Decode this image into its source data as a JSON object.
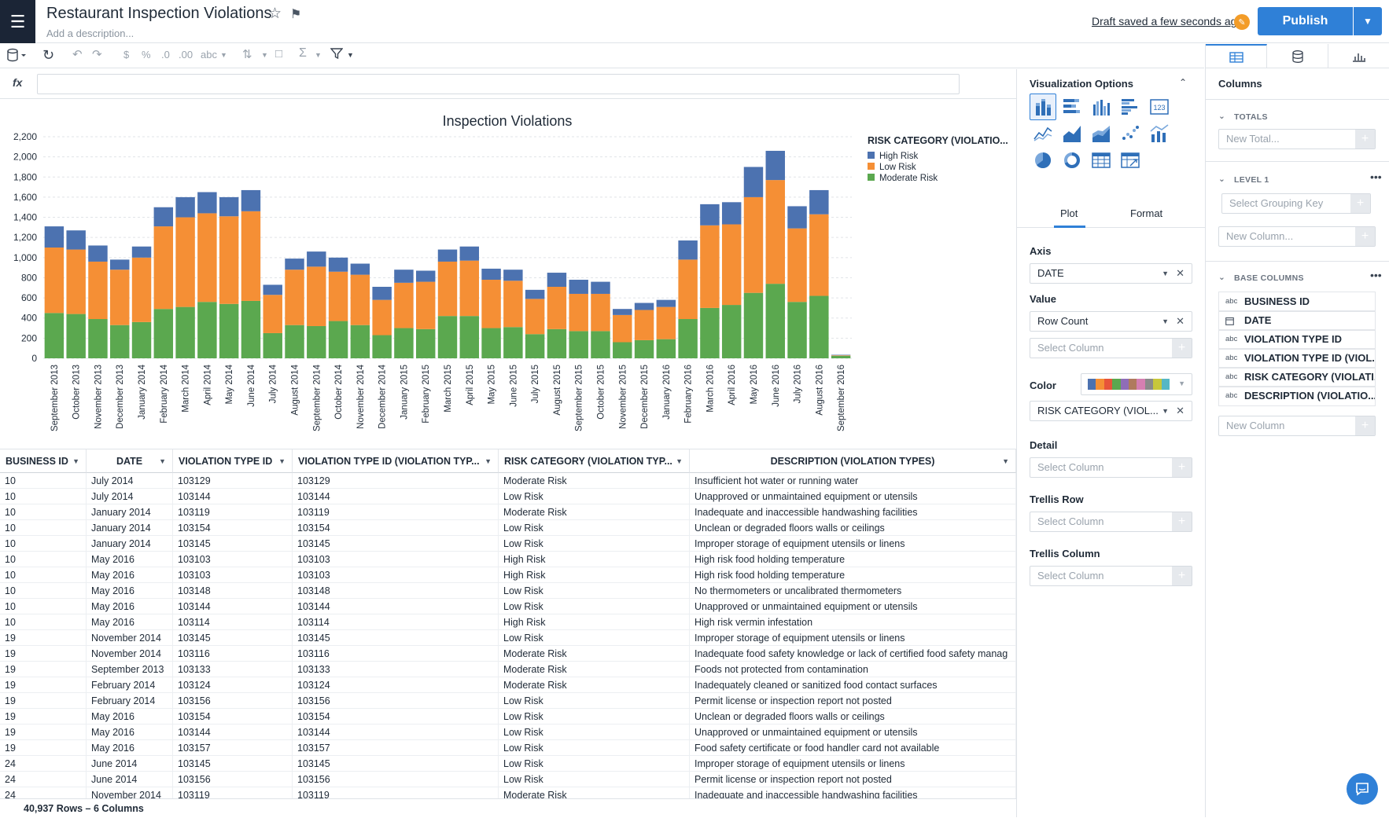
{
  "header": {
    "title": "Restaurant Inspection Violations",
    "description_placeholder": "Add a description...",
    "draft_status": "Draft saved a few seconds ago",
    "publish_label": "Publish"
  },
  "toolbar": {
    "currency": "$",
    "percent": "%",
    "dec_less": ".0",
    "dec_more": ".00",
    "text_format": "abc"
  },
  "formula_bar": {
    "label": "fx"
  },
  "viz_panel": {
    "title": "Visualization Options",
    "tabs": [
      "Plot",
      "Format"
    ],
    "axis": {
      "label": "Axis",
      "value": "DATE"
    },
    "value": {
      "label": "Value",
      "value": "Row Count",
      "placeholder": "Select Column"
    },
    "color": {
      "label": "Color",
      "value": "RISK CATEGORY (VIOL..."
    },
    "detail": {
      "label": "Detail",
      "placeholder": "Select Column"
    },
    "trellis_row": {
      "label": "Trellis Row",
      "placeholder": "Select Column"
    },
    "trellis_column": {
      "label": "Trellis Column",
      "placeholder": "Select Column"
    },
    "palette": [
      "#4c72b0",
      "#f58f35",
      "#e7543a",
      "#5ba84f",
      "#8f6db8",
      "#b07a5e",
      "#d57fb1",
      "#8a8a8a",
      "#c7c73a",
      "#56b7c5"
    ]
  },
  "columns_panel": {
    "title": "Columns",
    "totals": {
      "label": "TOTALS",
      "placeholder": "New Total..."
    },
    "level1": {
      "label": "LEVEL 1",
      "placeholder": "Select Grouping Key",
      "new_column": "New Column..."
    },
    "base": {
      "label": "BASE COLUMNS",
      "new_column": "New Column"
    },
    "base_columns": [
      {
        "type": "abc",
        "name": "BUSINESS ID"
      },
      {
        "type": "cal",
        "name": "DATE"
      },
      {
        "type": "abc",
        "name": "VIOLATION TYPE ID"
      },
      {
        "type": "abc",
        "name": "VIOLATION TYPE ID (VIOL..."
      },
      {
        "type": "abc",
        "name": "RISK CATEGORY (VIOLATI..."
      },
      {
        "type": "abc",
        "name": "DESCRIPTION (VIOLATIO..."
      }
    ]
  },
  "table": {
    "headers": [
      "BUSINESS ID",
      "DATE",
      "VIOLATION TYPE ID",
      "VIOLATION TYPE ID (VIOLATION TYP...",
      "RISK CATEGORY (VIOLATION TYP...",
      "DESCRIPTION (VIOLATION TYPES)"
    ],
    "rows": [
      [
        "10",
        "July 2014",
        "103129",
        "103129",
        "Moderate Risk",
        "Insufficient hot water or running water"
      ],
      [
        "10",
        "July 2014",
        "103144",
        "103144",
        "Low Risk",
        "Unapproved or unmaintained equipment or utensils"
      ],
      [
        "10",
        "January 2014",
        "103119",
        "103119",
        "Moderate Risk",
        "Inadequate and inaccessible handwashing facilities"
      ],
      [
        "10",
        "January 2014",
        "103154",
        "103154",
        "Low Risk",
        "Unclean or degraded floors walls or ceilings"
      ],
      [
        "10",
        "January 2014",
        "103145",
        "103145",
        "Low Risk",
        "Improper storage of equipment utensils or linens"
      ],
      [
        "10",
        "May 2016",
        "103103",
        "103103",
        "High Risk",
        "High risk food holding temperature"
      ],
      [
        "10",
        "May 2016",
        "103103",
        "103103",
        "High Risk",
        "High risk food holding temperature"
      ],
      [
        "10",
        "May 2016",
        "103148",
        "103148",
        "Low Risk",
        "No thermometers or uncalibrated thermometers"
      ],
      [
        "10",
        "May 2016",
        "103144",
        "103144",
        "Low Risk",
        "Unapproved or unmaintained equipment or utensils"
      ],
      [
        "10",
        "May 2016",
        "103114",
        "103114",
        "High Risk",
        "High risk vermin infestation"
      ],
      [
        "19",
        "November 2014",
        "103145",
        "103145",
        "Low Risk",
        "Improper storage of equipment utensils or linens"
      ],
      [
        "19",
        "November 2014",
        "103116",
        "103116",
        "Moderate Risk",
        "Inadequate food safety knowledge or lack of certified food safety manag"
      ],
      [
        "19",
        "September 2013",
        "103133",
        "103133",
        "Moderate Risk",
        "Foods not protected from contamination"
      ],
      [
        "19",
        "February 2014",
        "103124",
        "103124",
        "Moderate Risk",
        "Inadequately cleaned or sanitized food contact surfaces"
      ],
      [
        "19",
        "February 2014",
        "103156",
        "103156",
        "Low Risk",
        "Permit license or inspection report not posted"
      ],
      [
        "19",
        "May 2016",
        "103154",
        "103154",
        "Low Risk",
        "Unclean or degraded floors walls or ceilings"
      ],
      [
        "19",
        "May 2016",
        "103144",
        "103144",
        "Low Risk",
        "Unapproved or unmaintained equipment or utensils"
      ],
      [
        "19",
        "May 2016",
        "103157",
        "103157",
        "Low Risk",
        "Food safety certificate or food handler card not available"
      ],
      [
        "24",
        "June 2014",
        "103145",
        "103145",
        "Low Risk",
        "Improper storage of equipment utensils or linens"
      ],
      [
        "24",
        "June 2014",
        "103156",
        "103156",
        "Low Risk",
        "Permit license or inspection report not posted"
      ],
      [
        "24",
        "November 2014",
        "103119",
        "103119",
        "Moderate Risk",
        "Inadequate and inaccessible handwashing facilities"
      ]
    ]
  },
  "footer": {
    "summary": "40,937 Rows – 6 Columns"
  },
  "chart_data": {
    "type": "bar",
    "stacked": true,
    "title": "Inspection Violations",
    "legend_title": "RISK CATEGORY (VIOLATIO...",
    "legend_position": "top-right",
    "ylim": [
      0,
      2200
    ],
    "yticks": [
      "0",
      "200",
      "400",
      "600",
      "800",
      "1,000",
      "1,200",
      "1,400",
      "1,600",
      "1,800",
      "2,000",
      "2,200"
    ],
    "grid": true,
    "categories": [
      "September 2013",
      "October 2013",
      "November 2013",
      "December 2013",
      "January 2014",
      "February 2014",
      "March 2014",
      "April 2014",
      "May 2014",
      "June 2014",
      "July 2014",
      "August 2014",
      "September 2014",
      "October 2014",
      "November 2014",
      "December 2014",
      "January 2015",
      "February 2015",
      "March 2015",
      "April 2015",
      "May 2015",
      "June 2015",
      "July 2015",
      "August 2015",
      "September 2015",
      "October 2015",
      "November 2015",
      "December 2015",
      "January 2016",
      "February 2016",
      "March 2016",
      "April 2016",
      "May 2016",
      "June 2016",
      "July 2016",
      "August 2016",
      "September 2016"
    ],
    "series": [
      {
        "name": "Moderate Risk",
        "color": "#5ba84f",
        "values": [
          450,
          440,
          390,
          330,
          360,
          490,
          510,
          560,
          540,
          570,
          250,
          330,
          320,
          370,
          330,
          230,
          300,
          290,
          420,
          420,
          300,
          310,
          240,
          290,
          270,
          270,
          160,
          180,
          190,
          390,
          500,
          530,
          650,
          740,
          560,
          620,
          25
        ]
      },
      {
        "name": "Low Risk",
        "color": "#f58f35",
        "values": [
          650,
          640,
          570,
          550,
          640,
          820,
          890,
          880,
          870,
          890,
          380,
          550,
          590,
          490,
          500,
          350,
          450,
          470,
          540,
          550,
          480,
          460,
          350,
          420,
          370,
          370,
          270,
          300,
          320,
          590,
          820,
          800,
          950,
          1030,
          730,
          810,
          5
        ]
      },
      {
        "name": "High Risk",
        "color": "#4c72b0",
        "values": [
          210,
          190,
          160,
          100,
          110,
          190,
          200,
          210,
          190,
          210,
          100,
          110,
          150,
          140,
          110,
          130,
          130,
          110,
          120,
          140,
          110,
          110,
          90,
          140,
          140,
          120,
          60,
          70,
          70,
          190,
          210,
          220,
          300,
          290,
          220,
          240,
          5
        ]
      }
    ]
  }
}
